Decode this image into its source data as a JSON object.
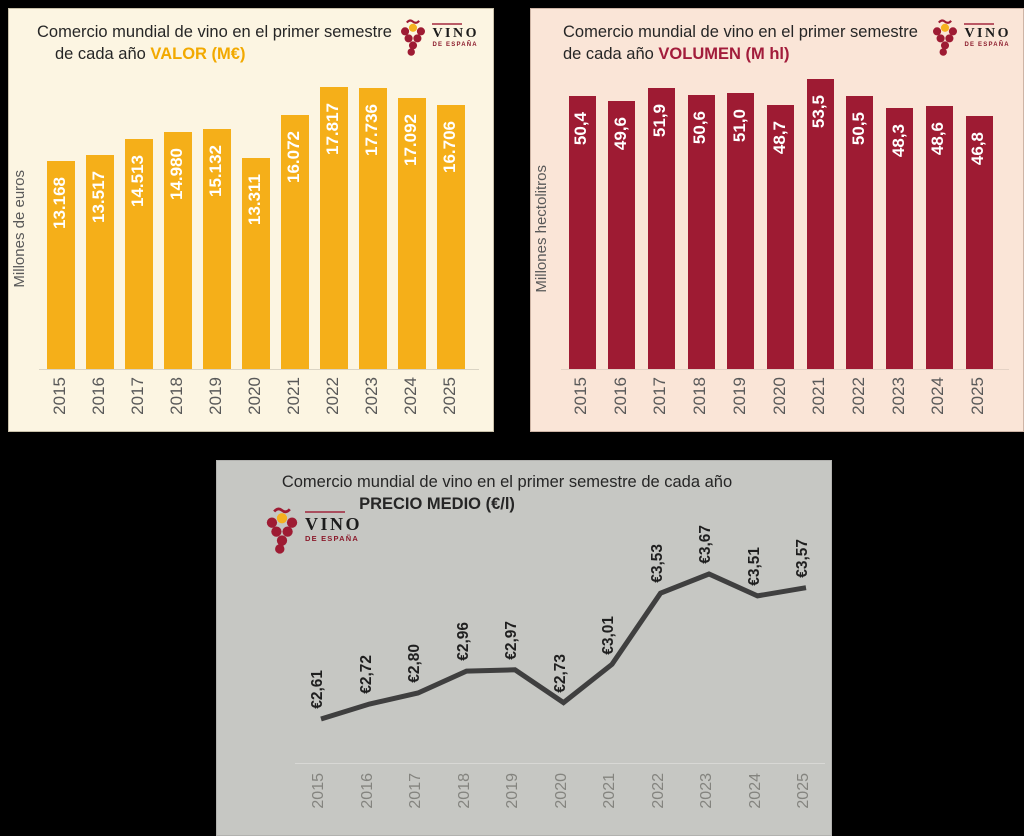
{
  "logo": {
    "vino": "VINO",
    "de_espana": "DE ESPAÑA"
  },
  "chart_data": [
    {
      "type": "bar",
      "title_line1": "Comercio mundial de vino en el primer semestre",
      "title_line2_prefix": "de cada año ",
      "title_highlight": "VALOR (M€)",
      "ylabel": "Millones de euros",
      "categories": [
        "2015",
        "2016",
        "2017",
        "2018",
        "2019",
        "2020",
        "2021",
        "2022",
        "2023",
        "2024",
        "2025"
      ],
      "values": [
        13168,
        13517,
        14513,
        14980,
        15132,
        13311,
        16072,
        17817,
        17736,
        17092,
        16706
      ],
      "labels": [
        "13.168",
        "13.517",
        "14.513",
        "14.980",
        "15.132",
        "13.311",
        "16.072",
        "17.817",
        "17.736",
        "17.092",
        "16.706"
      ],
      "ylim": [
        0,
        18000
      ],
      "bar_color": "#F5AF19",
      "bg_color": "#FCF5E2",
      "accent_color": "#F2A900",
      "axis_color": "#dad4c4",
      "grid": false,
      "legend": "none"
    },
    {
      "type": "bar",
      "title_line1": "Comercio mundial de vino en el primer semestre",
      "title_line2_prefix": "de cada año ",
      "title_highlight": "VOLUMEN (M hl)",
      "ylabel": "Millones hectolitros",
      "categories": [
        "2015",
        "2016",
        "2017",
        "2018",
        "2019",
        "2020",
        "2021",
        "2022",
        "2023",
        "2024",
        "2025"
      ],
      "values": [
        50.4,
        49.6,
        51.9,
        50.6,
        51.0,
        48.7,
        53.5,
        50.5,
        48.3,
        48.6,
        46.8
      ],
      "labels": [
        "50,4",
        "49,6",
        "51,9",
        "50,6",
        "51,0",
        "48,7",
        "53,5",
        "50,5",
        "48,3",
        "48,6",
        "46,8"
      ],
      "ylim": [
        0,
        54.5
      ],
      "bar_color": "#9E1B33",
      "bg_color": "#FAE5D7",
      "accent_color": "#A21C3B",
      "axis_color": "#e4d2c5",
      "grid": false,
      "legend": "none"
    },
    {
      "type": "line",
      "title_line1": "Comercio mundial de vino en el primer semestre de cada año",
      "title_highlight": "PRECIO MEDIO (€/l)",
      "categories": [
        "2015",
        "2016",
        "2017",
        "2018",
        "2019",
        "2020",
        "2021",
        "2022",
        "2023",
        "2024",
        "2025"
      ],
      "values": [
        2.61,
        2.72,
        2.8,
        2.96,
        2.97,
        2.73,
        3.01,
        3.53,
        3.67,
        3.51,
        3.57
      ],
      "labels": [
        "€2,61",
        "€2,72",
        "€2,80",
        "€2,96",
        "€2,97",
        "€2,73",
        "€3,01",
        "€3,53",
        "€3,67",
        "€3,51",
        "€3,57"
      ],
      "ylim": [
        2.61,
        3.67
      ],
      "line_color": "#3F3F3F",
      "bg_color": "#C6C7C3",
      "axis_color": "#d8d8d5",
      "grid": false,
      "legend": "none"
    }
  ]
}
